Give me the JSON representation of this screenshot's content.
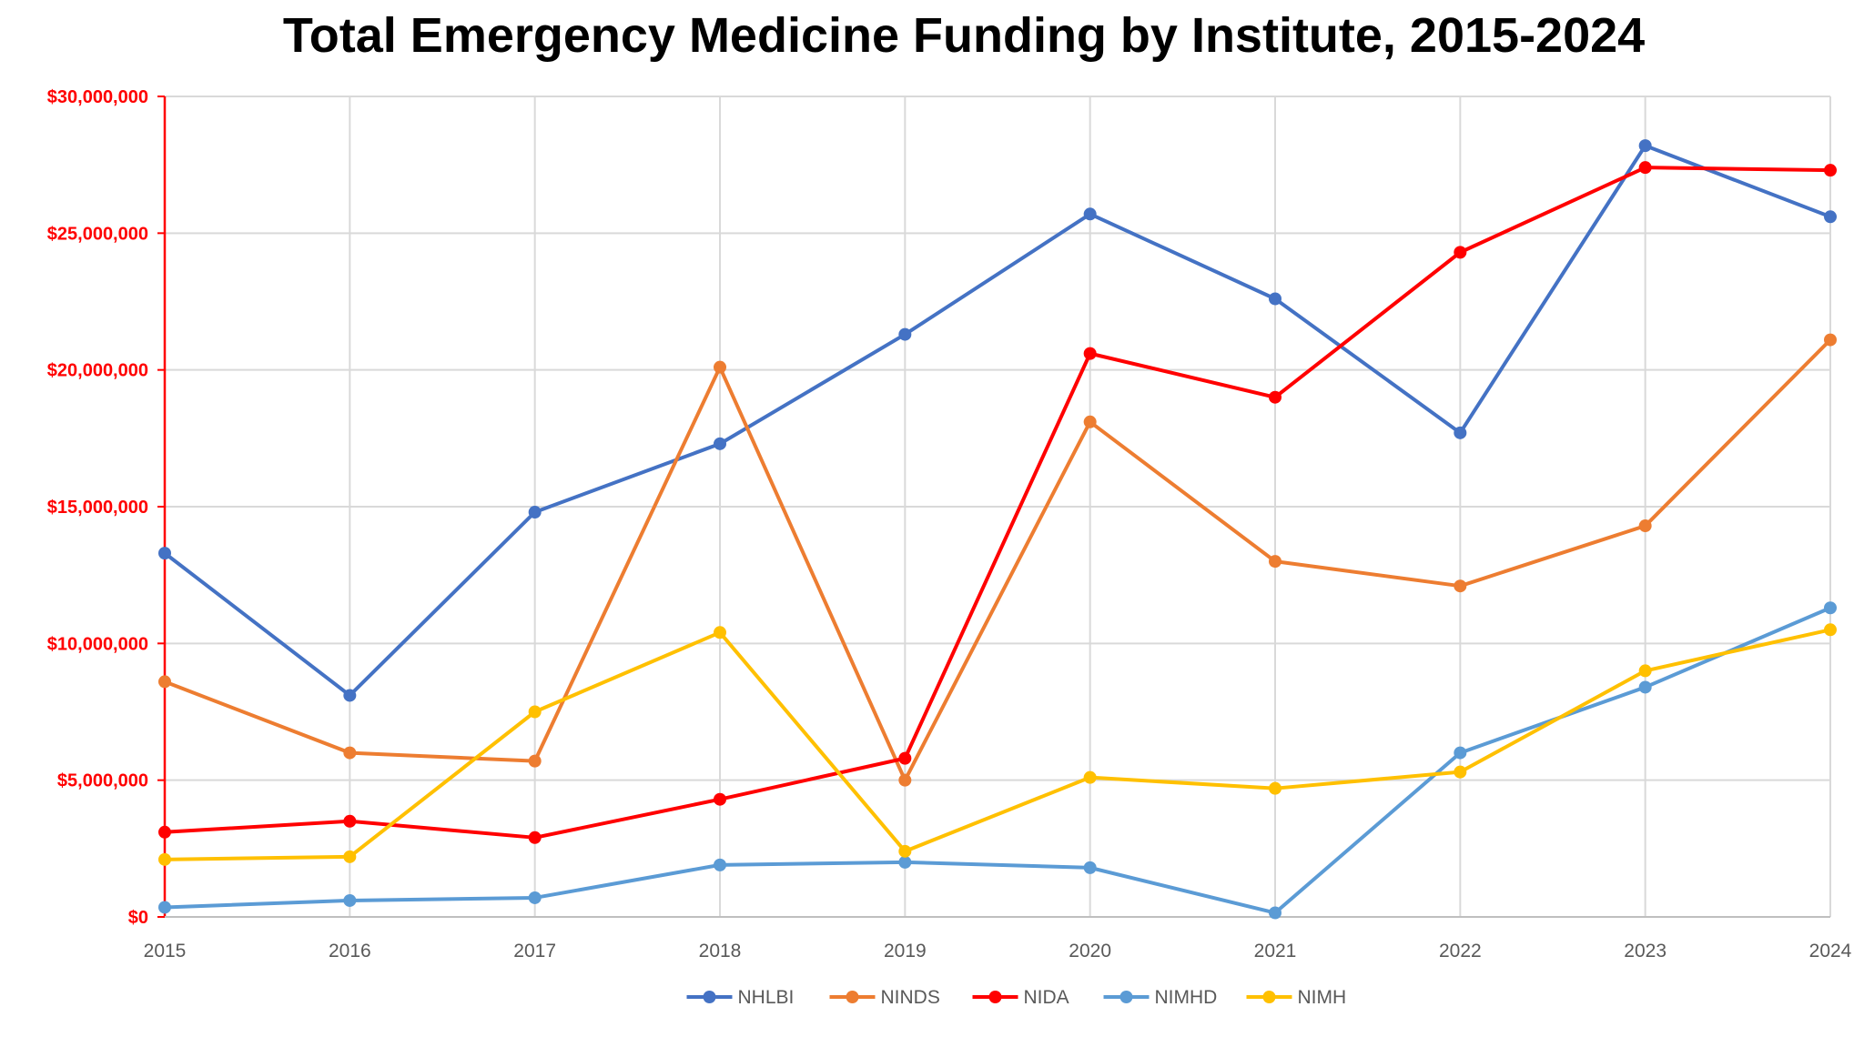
{
  "chart_data": {
    "type": "line",
    "title": "Total Emergency Medicine Funding by Institute, 2015-2024",
    "xlabel": "",
    "ylabel": "",
    "x": [
      "2015",
      "2016",
      "2017",
      "2018",
      "2019",
      "2020",
      "2021",
      "2022",
      "2023",
      "2024"
    ],
    "ylim": [
      0,
      30000000
    ],
    "y_ticks": [
      0,
      5000000,
      10000000,
      15000000,
      20000000,
      25000000,
      30000000
    ],
    "y_tick_labels": [
      "$0",
      "$5,000,000",
      "$10,000,000",
      "$15,000,000",
      "$20,000,000",
      "$25,000,000",
      "$30,000,000"
    ],
    "y_axis_color": "#ff0000",
    "grid": true,
    "legend_position": "bottom",
    "series": [
      {
        "name": "NHLBI",
        "color": "#4472c4",
        "values": [
          13300000,
          8100000,
          14800000,
          17300000,
          21300000,
          25700000,
          22600000,
          17700000,
          28200000,
          25600000
        ]
      },
      {
        "name": "NINDS",
        "color": "#ed7d31",
        "values": [
          8600000,
          6000000,
          5700000,
          20100000,
          5000000,
          18100000,
          13000000,
          12100000,
          14300000,
          21100000
        ]
      },
      {
        "name": "NIDA",
        "color": "#ff0000",
        "values": [
          3100000,
          3500000,
          2900000,
          4300000,
          5800000,
          20600000,
          19000000,
          24300000,
          27400000,
          27300000
        ]
      },
      {
        "name": "NIMHD",
        "color": "#5b9bd5",
        "values": [
          350000,
          600000,
          700000,
          1900000,
          2000000,
          1800000,
          150000,
          6000000,
          8400000,
          11300000
        ]
      },
      {
        "name": "NIMH",
        "color": "#ffc000",
        "values": [
          2100000,
          2200000,
          7500000,
          10400000,
          2400000,
          5100000,
          4700000,
          5300000,
          9000000,
          10500000
        ]
      }
    ]
  }
}
